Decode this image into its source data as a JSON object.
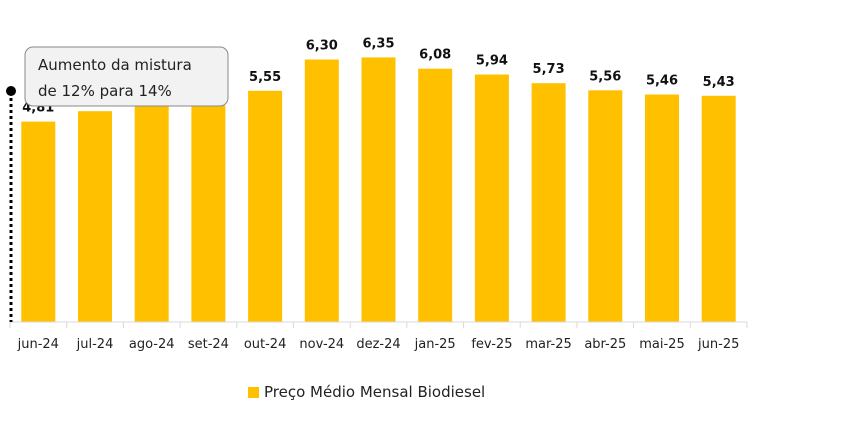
{
  "chart_data": {
    "type": "bar",
    "categories": [
      "jun-24",
      "jul-24",
      "ago-24",
      "set-24",
      "out-24",
      "nov-24",
      "dez-24",
      "jan-25",
      "fev-25",
      "mar-25",
      "abr-25",
      "mai-25",
      "jun-25"
    ],
    "series": [
      {
        "name": "Preço Médio Mensal Biodiesel",
        "values": [
          4.81,
          5.06,
          5.19,
          5.2,
          5.55,
          6.3,
          6.35,
          6.08,
          5.94,
          5.73,
          5.56,
          5.46,
          5.43
        ],
        "labels": [
          "4,81",
          "5,06",
          "5,19",
          "5,20",
          "5,55",
          "6,30",
          "6,35",
          "6,08",
          "5,94",
          "5,73",
          "5,56",
          "5,46",
          "5,43"
        ],
        "color": "#FFC000"
      }
    ],
    "ylim": [
      0,
      6.6
    ],
    "grid": false,
    "legend_position": "bottom",
    "annotation": {
      "lines": [
        "Aumento da mistura",
        "de 12% para 14%"
      ],
      "category": "jun-24"
    }
  }
}
